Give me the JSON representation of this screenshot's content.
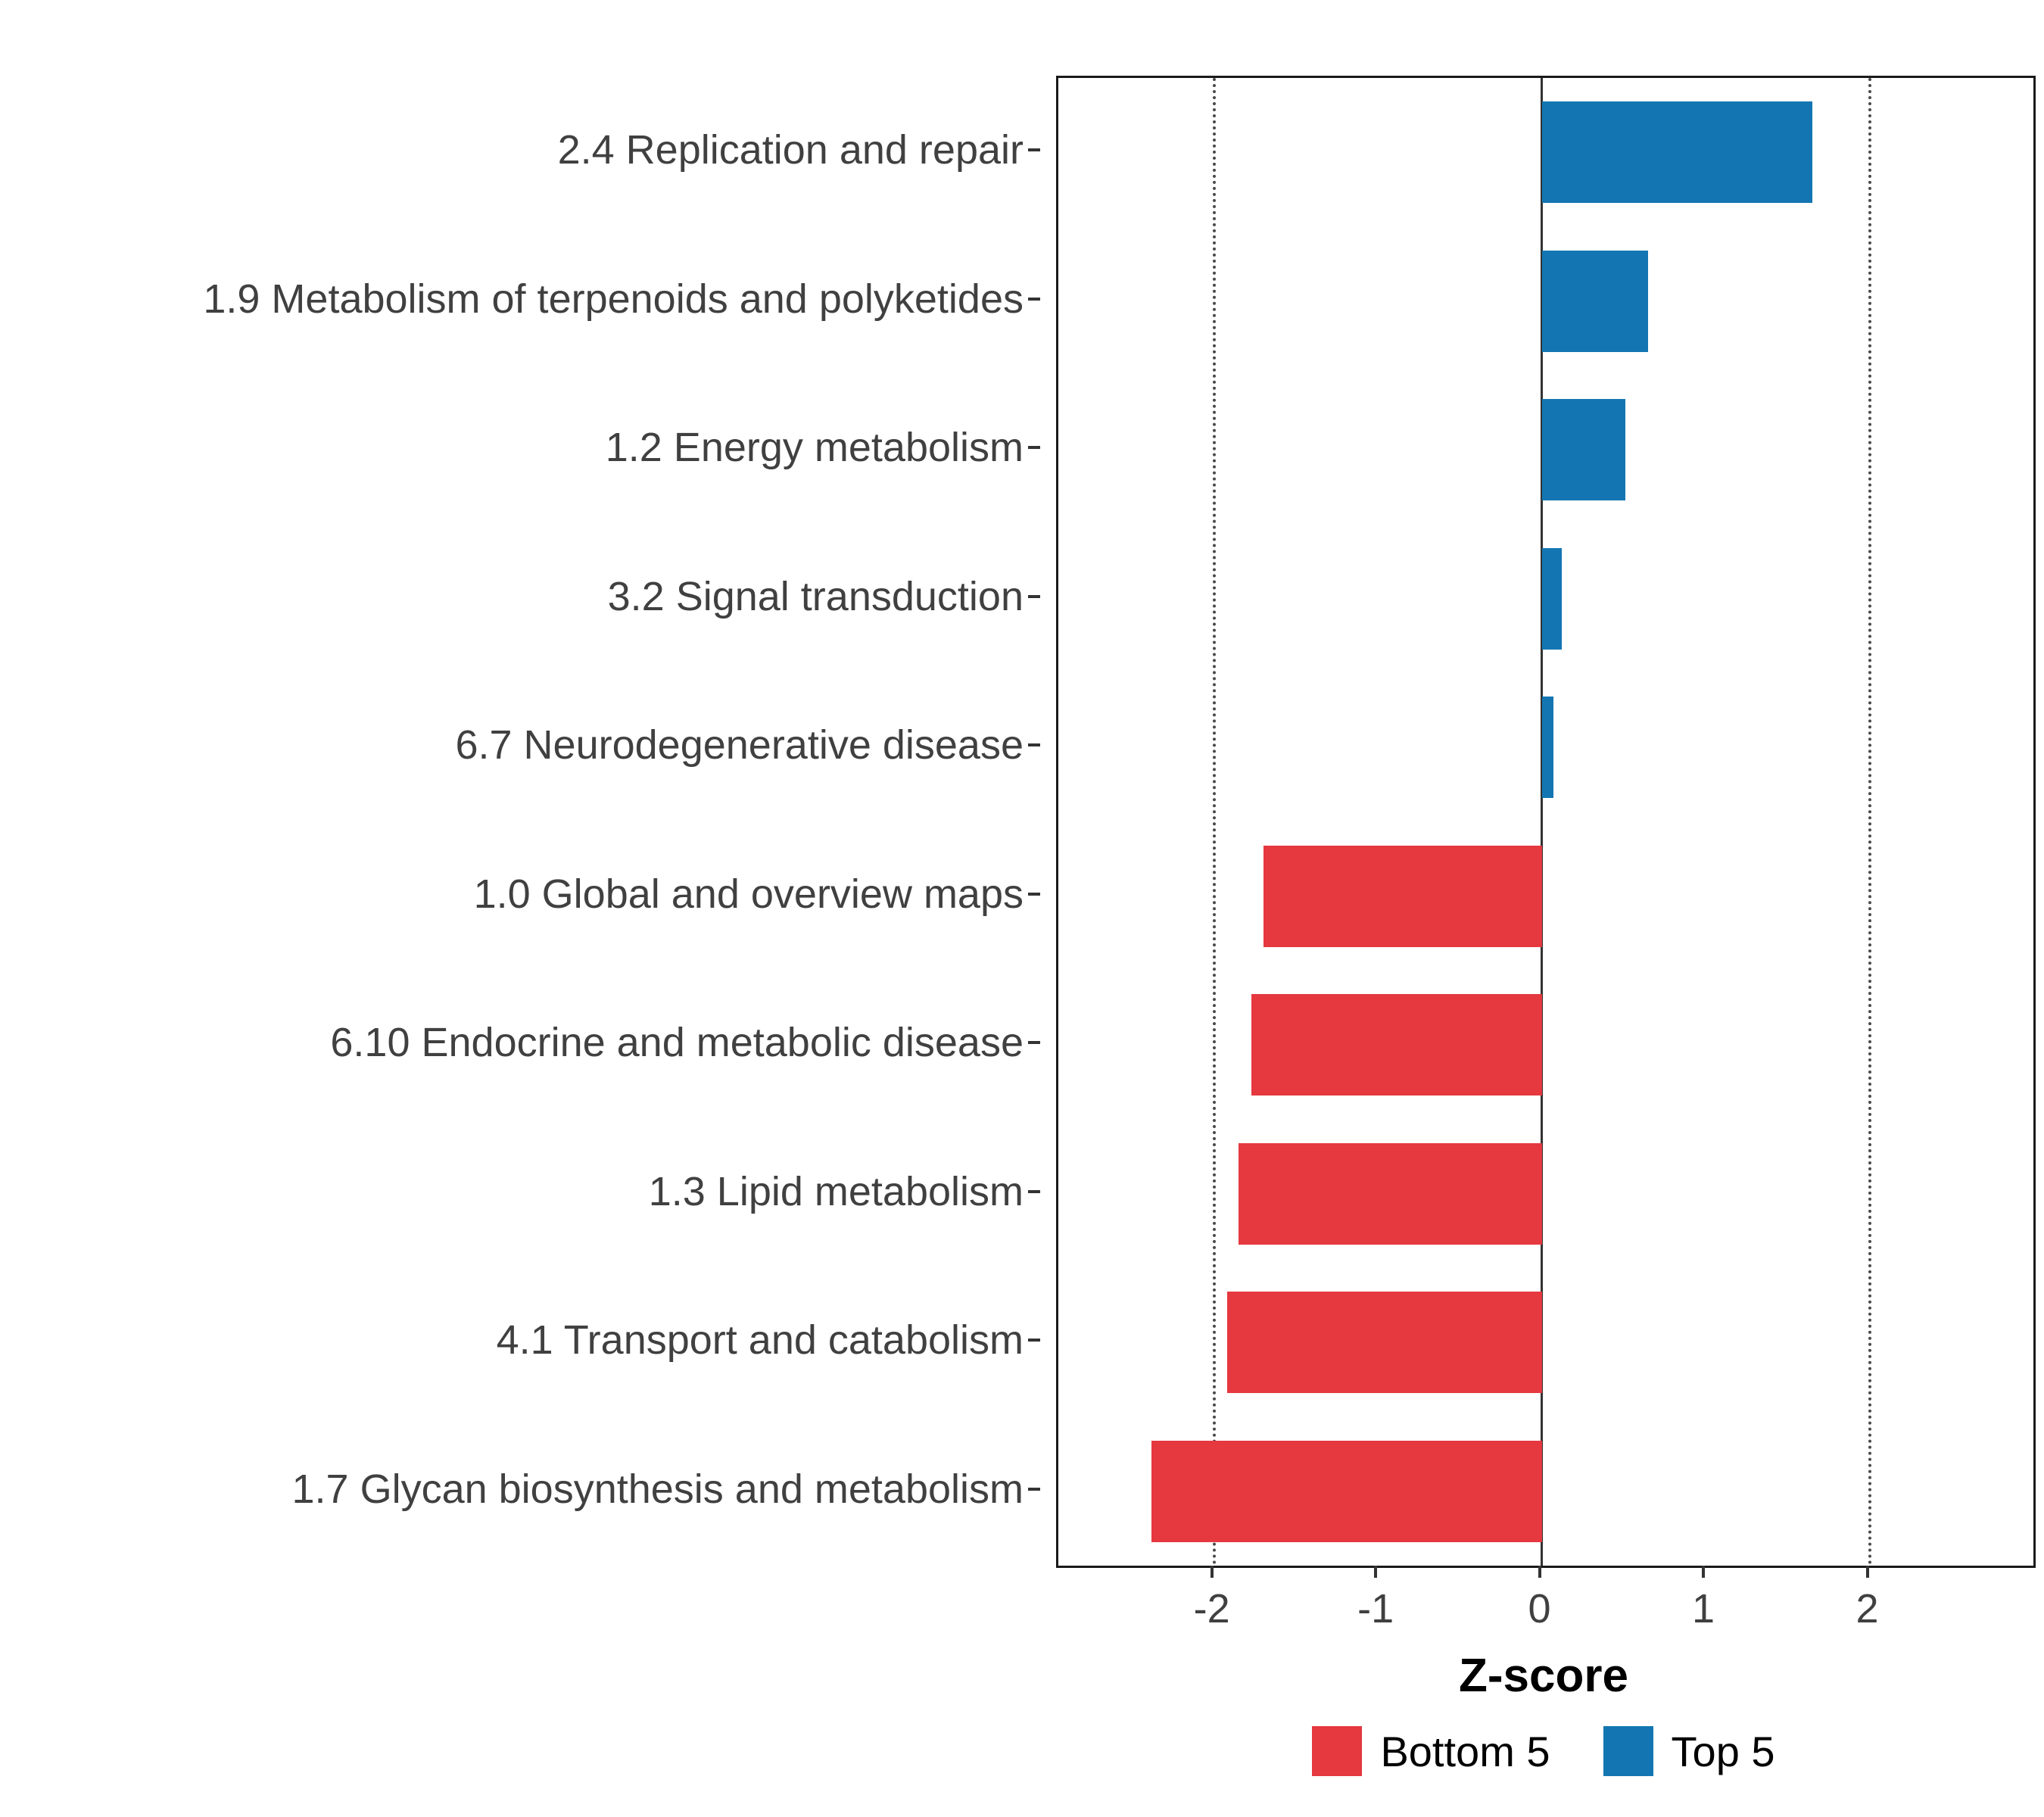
{
  "chart_data": {
    "type": "bar",
    "orientation": "horizontal",
    "title": "",
    "xlabel": "Z-score",
    "categories": [
      "2.4 Replication and repair",
      "1.9 Metabolism of terpenoids and polyketides",
      "1.2 Energy metabolism",
      "3.2 Signal transduction",
      "6.7 Neurodegenerative disease",
      "1.0 Global and overview maps",
      "6.10 Endocrine and metabolic disease",
      "1.3 Lipid metabolism",
      "4.1 Transport and catabolism",
      "1.7 Glycan biosynthesis and metabolism"
    ],
    "values": [
      1.65,
      0.65,
      0.51,
      0.12,
      0.07,
      -1.7,
      -1.77,
      -1.85,
      -1.92,
      -2.38
    ],
    "groups": [
      "Top 5",
      "Top 5",
      "Top 5",
      "Top 5",
      "Top 5",
      "Bottom 5",
      "Bottom 5",
      "Bottom 5",
      "Bottom 5",
      "Bottom 5"
    ],
    "colors": {
      "Bottom 5": "#E5383F",
      "Top 5": "#1376B2"
    },
    "x_ticks": [
      "-2",
      "-1",
      "0",
      "1",
      "2"
    ],
    "x_tick_values": [
      -2,
      -1,
      0,
      1,
      2
    ],
    "xlim": [
      -2.95,
      3.0
    ],
    "reference_lines": [
      -2,
      2
    ],
    "zero_line": 0,
    "grid": "reference-lines-only",
    "legend_position": "bottom",
    "legend": [
      {
        "label": "Bottom 5",
        "color": "#E5383F"
      },
      {
        "label": "Top 5",
        "color": "#1376B2"
      }
    ],
    "bar_width_fraction": 0.68
  }
}
